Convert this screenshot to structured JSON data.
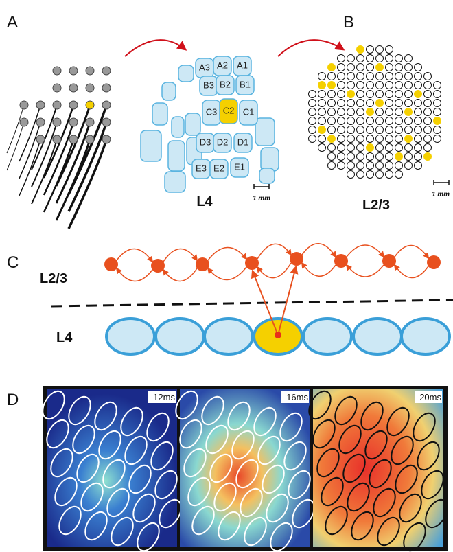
{
  "panels": {
    "A": {
      "label": "A",
      "barrels": [
        [
          "A3",
          "A2",
          "A1"
        ],
        [
          "B3",
          "B2",
          "B1"
        ],
        [
          "C3",
          "C2",
          "C1"
        ],
        [
          "D3",
          "D2",
          "D1"
        ],
        [
          "E3",
          "E2",
          "E1"
        ]
      ],
      "layer": "L4",
      "scale": "1 mm"
    },
    "B": {
      "label": "B",
      "layer": "L2/3",
      "scale": "1 mm"
    },
    "C": {
      "label": "C",
      "upper_layer": "L2/3",
      "lower_layer": "L4"
    },
    "D": {
      "label": "D",
      "frames": [
        "12ms",
        "16ms",
        "20ms"
      ]
    }
  }
}
